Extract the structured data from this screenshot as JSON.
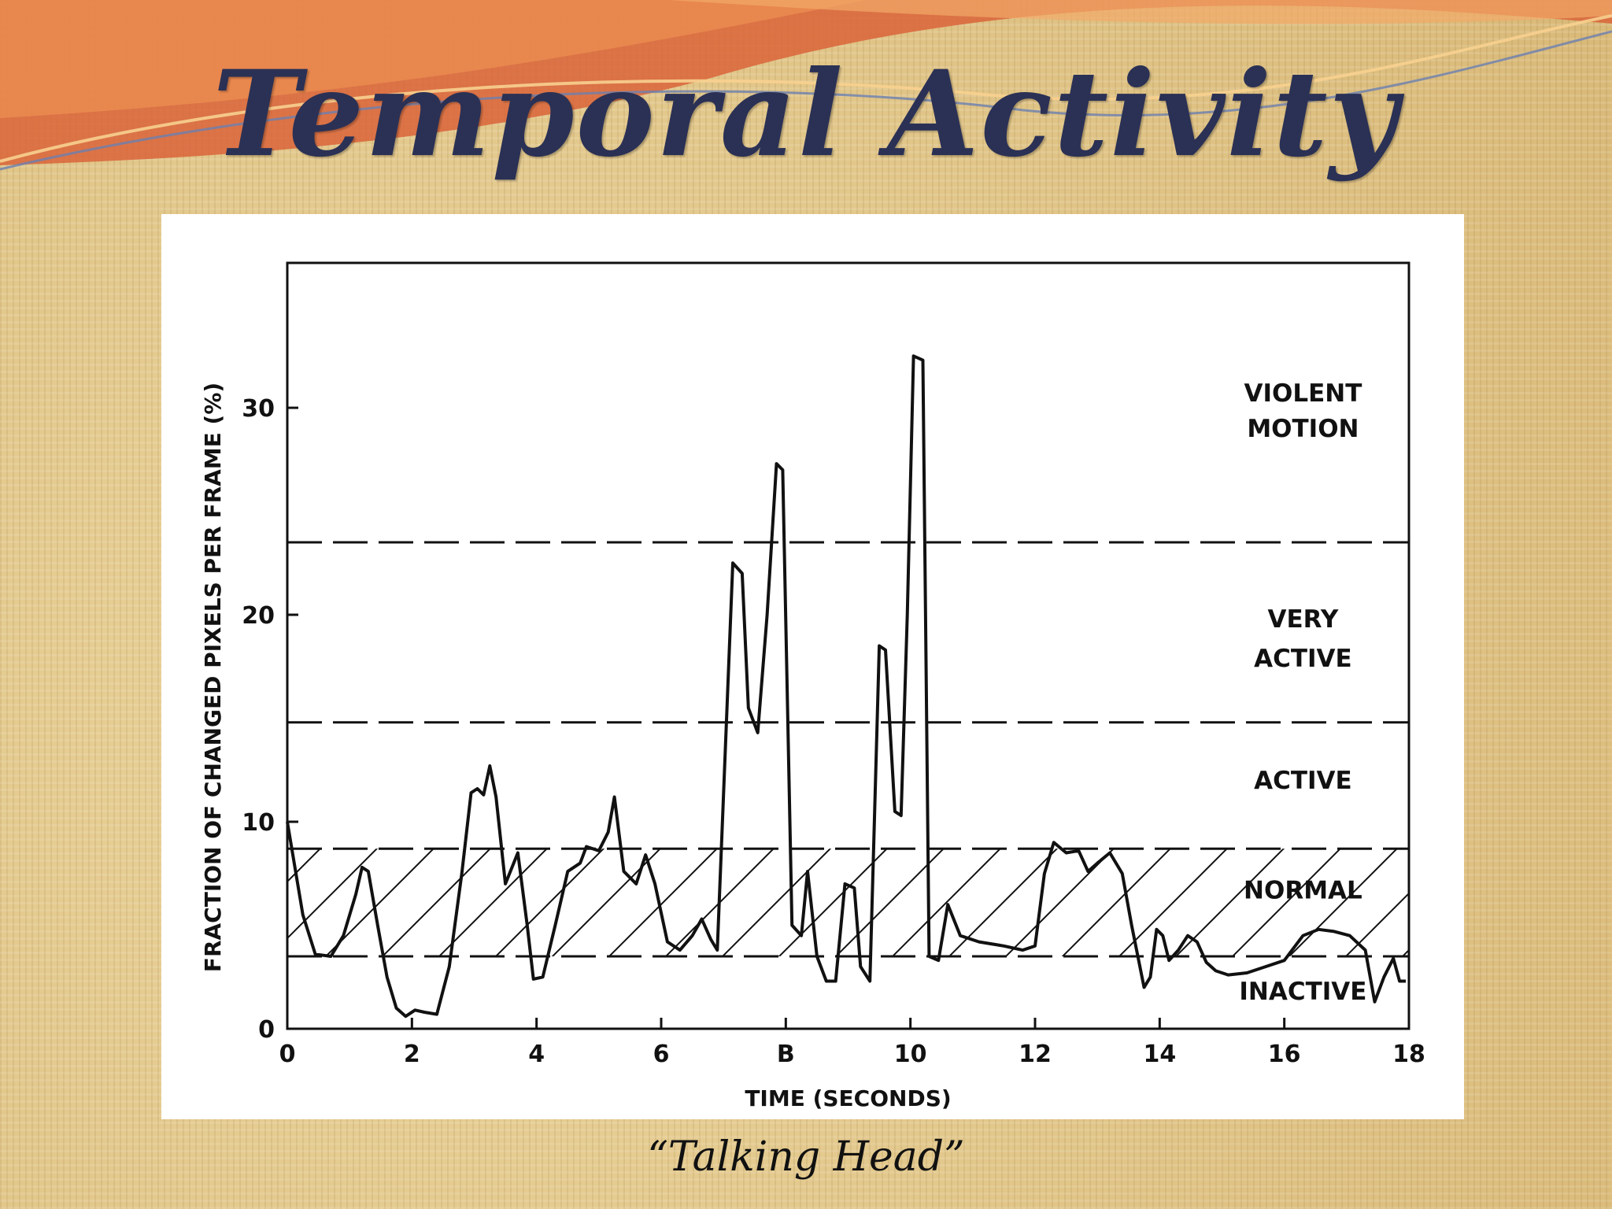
{
  "slide": {
    "title": "Temporal Activity",
    "caption": "“Talking Head”"
  },
  "colors": {
    "title": "#2b3155",
    "banner_orange": "#d9643a",
    "banner_light": "#f2a968",
    "background": "#e4c98d",
    "chart_line": "#111111"
  },
  "chart_data": {
    "type": "line",
    "title": "",
    "xlabel": "TIME (SECONDS)",
    "ylabel": "FRACTION OF CHANGED PIXELS PER FRAME (%)",
    "xlim": [
      0,
      18
    ],
    "ylim": [
      0,
      37
    ],
    "x_ticks": [
      {
        "value": 0,
        "label": "0"
      },
      {
        "value": 2,
        "label": "2"
      },
      {
        "value": 4,
        "label": "4"
      },
      {
        "value": 6,
        "label": "6"
      },
      {
        "value": 8,
        "label": "B"
      },
      {
        "value": 10,
        "label": "10"
      },
      {
        "value": 12,
        "label": "12"
      },
      {
        "value": 14,
        "label": "14"
      },
      {
        "value": 16,
        "label": "16"
      },
      {
        "value": 18,
        "label": "18"
      }
    ],
    "y_ticks": [
      {
        "value": 0,
        "label": "0"
      },
      {
        "value": 10,
        "label": "10"
      },
      {
        "value": 20,
        "label": "20"
      },
      {
        "value": 30,
        "label": "30"
      }
    ],
    "thresholds": [
      3.5,
      8.7,
      14.8,
      23.5
    ],
    "normal_band": [
      3.5,
      8.7
    ],
    "regions": [
      {
        "label": "VIOLENT",
        "x": 16.3,
        "y": 30.3
      },
      {
        "label": "MOTION",
        "x": 16.3,
        "y": 28.6
      },
      {
        "label": "VERY",
        "x": 16.3,
        "y": 19.4
      },
      {
        "label": "ACTIVE",
        "x": 16.3,
        "y": 17.5
      },
      {
        "label": "ACTIVE",
        "x": 16.3,
        "y": 11.6
      },
      {
        "label": "NORMAL",
        "x": 16.3,
        "y": 6.3
      },
      {
        "label": "INACTIVE",
        "x": 16.3,
        "y": 1.4
      }
    ],
    "grid": false,
    "legend": "none",
    "series": [
      {
        "x": [
          0,
          0.25,
          0.45,
          0.7,
          0.9,
          1.1,
          1.2,
          1.3,
          1.45,
          1.6,
          1.75,
          1.9,
          2.05,
          2.2,
          2.4,
          2.6,
          2.8,
          2.95,
          3.05,
          3.15,
          3.25,
          3.35,
          3.5,
          3.7,
          3.85,
          3.95,
          4.1,
          4.3,
          4.5,
          4.7,
          4.8,
          5.0,
          5.15,
          5.25,
          5.4,
          5.6,
          5.75,
          5.9,
          6.1,
          6.3,
          6.5,
          6.65,
          6.8,
          6.9,
          7.05,
          7.15,
          7.3,
          7.4,
          7.55,
          7.7,
          7.85,
          7.95,
          8.1,
          8.25,
          8.35,
          8.5,
          8.65,
          8.8,
          8.95,
          9.1,
          9.2,
          9.35,
          9.5,
          9.6,
          9.75,
          9.85,
          9.95,
          10.05,
          10.2,
          10.3,
          10.45,
          10.6,
          10.8,
          11.1,
          11.5,
          11.8,
          12.0,
          12.15,
          12.3,
          12.5,
          12.7,
          12.85,
          13.0,
          13.2,
          13.4,
          13.55,
          13.75,
          13.85,
          13.95,
          14.05,
          14.15,
          14.3,
          14.45,
          14.6,
          14.75,
          14.9,
          15.1,
          15.4,
          15.7,
          16.0,
          16.3,
          16.55,
          16.8,
          17.05,
          17.3,
          17.45,
          17.6,
          17.75,
          17.85,
          17.95
        ],
        "y": [
          10,
          5.5,
          3.6,
          3.5,
          4.5,
          6.5,
          7.8,
          7.6,
          5.0,
          2.5,
          1.0,
          0.6,
          0.9,
          0.8,
          0.7,
          3.0,
          7.5,
          11.4,
          11.6,
          11.3,
          12.7,
          11.2,
          7.0,
          8.5,
          5.0,
          2.4,
          2.5,
          5.0,
          7.6,
          8.0,
          8.8,
          8.6,
          9.5,
          11.2,
          7.6,
          7.0,
          8.4,
          7.0,
          4.2,
          3.8,
          4.5,
          5.3,
          4.3,
          3.8,
          15.0,
          22.5,
          22.0,
          15.5,
          14.3,
          20.0,
          27.3,
          27.0,
          5.0,
          4.5,
          7.6,
          3.5,
          2.3,
          2.3,
          7.0,
          6.8,
          3.0,
          2.3,
          18.5,
          18.3,
          10.5,
          10.3,
          20.0,
          32.5,
          32.3,
          3.5,
          3.3,
          6.0,
          4.5,
          4.2,
          4.0,
          3.8,
          4.0,
          7.5,
          9.0,
          8.5,
          8.6,
          7.6,
          8.0,
          8.5,
          7.5,
          5.0,
          2.0,
          2.5,
          4.8,
          4.5,
          3.3,
          3.8,
          4.5,
          4.2,
          3.2,
          2.8,
          2.6,
          2.7,
          3.0,
          3.3,
          4.5,
          4.8,
          4.7,
          4.5,
          3.8,
          1.3,
          2.5,
          3.4,
          2.3,
          2.3
        ]
      }
    ]
  }
}
